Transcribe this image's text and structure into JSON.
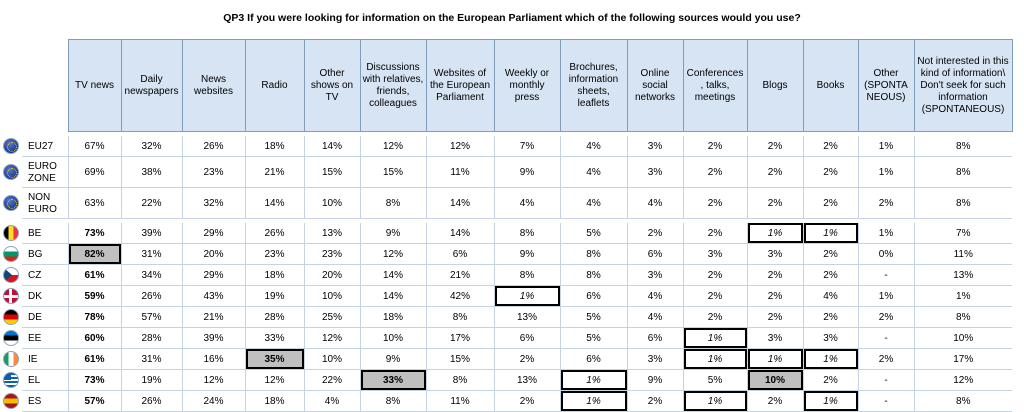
{
  "title": "QP3  If you were looking for information on the European Parliament which of the following sources would you use?",
  "columns": [
    "TV news",
    "Daily newspapers",
    "News websites",
    "Radio",
    "Other shows on TV",
    "Discussions with relatives, friends, colleagues",
    "Websites of the European Parliament",
    "Weekly or monthly press",
    "Brochures, information sheets, leaflets",
    "Online social networks",
    "Conferences , talks, meetings",
    "Blogs",
    "Books",
    "Other (SPONTA NEOUS)",
    "Not interested in this kind of information\\ Don't seek for such information (SPONTANEOUS)"
  ],
  "groups": [
    {
      "rows": [
        {
          "code": "EU27",
          "flag": "eu-flag-icon",
          "values": [
            "67%",
            "32%",
            "26%",
            "18%",
            "14%",
            "12%",
            "12%",
            "7%",
            "4%",
            "3%",
            "2%",
            "2%",
            "2%",
            "1%",
            "8%"
          ]
        },
        {
          "code": "EURO ZONE",
          "flag": "eu-flag-icon",
          "values": [
            "69%",
            "38%",
            "23%",
            "21%",
            "15%",
            "15%",
            "11%",
            "9%",
            "4%",
            "3%",
            "2%",
            "2%",
            "2%",
            "1%",
            "8%"
          ]
        },
        {
          "code": "NON EURO",
          "flag": "eu-flag-icon",
          "values": [
            "63%",
            "22%",
            "32%",
            "14%",
            "10%",
            "8%",
            "14%",
            "4%",
            "4%",
            "4%",
            "2%",
            "2%",
            "2%",
            "2%",
            "8%"
          ]
        }
      ]
    },
    {
      "rows": [
        {
          "code": "BE",
          "flag": "belgium-flag-icon",
          "values": [
            "73%",
            "39%",
            "29%",
            "26%",
            "13%",
            "9%",
            "14%",
            "8%",
            "5%",
            "2%",
            "2%",
            "1%",
            "1%",
            "1%",
            "7%"
          ],
          "bold": [
            0
          ],
          "low": [
            11,
            12
          ]
        },
        {
          "code": "BG",
          "flag": "bulgaria-flag-icon",
          "values": [
            "82%",
            "31%",
            "20%",
            "23%",
            "23%",
            "12%",
            "6%",
            "9%",
            "8%",
            "6%",
            "3%",
            "3%",
            "2%",
            "0%",
            "11%"
          ],
          "high": [
            0
          ]
        },
        {
          "code": "CZ",
          "flag": "czech-flag-icon",
          "values": [
            "61%",
            "34%",
            "29%",
            "18%",
            "20%",
            "14%",
            "21%",
            "8%",
            "8%",
            "3%",
            "2%",
            "2%",
            "2%",
            "-",
            "13%"
          ],
          "bold": [
            0
          ]
        },
        {
          "code": "DK",
          "flag": "denmark-flag-icon",
          "values": [
            "59%",
            "26%",
            "43%",
            "19%",
            "10%",
            "14%",
            "42%",
            "1%",
            "6%",
            "4%",
            "2%",
            "2%",
            "4%",
            "1%",
            "1%"
          ],
          "bold": [
            0
          ],
          "low": [
            7
          ]
        },
        {
          "code": "DE",
          "flag": "germany-flag-icon",
          "values": [
            "78%",
            "57%",
            "21%",
            "28%",
            "25%",
            "18%",
            "8%",
            "13%",
            "5%",
            "4%",
            "2%",
            "2%",
            "2%",
            "2%",
            "8%"
          ],
          "bold": [
            0
          ]
        },
        {
          "code": "EE",
          "flag": "estonia-flag-icon",
          "values": [
            "60%",
            "28%",
            "39%",
            "33%",
            "12%",
            "10%",
            "17%",
            "6%",
            "5%",
            "6%",
            "1%",
            "3%",
            "3%",
            "-",
            "10%"
          ],
          "bold": [
            0
          ],
          "low": [
            10
          ]
        },
        {
          "code": "IE",
          "flag": "ireland-flag-icon",
          "values": [
            "61%",
            "31%",
            "16%",
            "35%",
            "10%",
            "9%",
            "15%",
            "2%",
            "6%",
            "3%",
            "1%",
            "1%",
            "1%",
            "2%",
            "17%"
          ],
          "bold": [
            0
          ],
          "high": [
            3
          ],
          "low": [
            10,
            11,
            12
          ]
        },
        {
          "code": "EL",
          "flag": "greece-flag-icon",
          "values": [
            "73%",
            "19%",
            "12%",
            "12%",
            "22%",
            "33%",
            "8%",
            "13%",
            "1%",
            "9%",
            "5%",
            "10%",
            "2%",
            "-",
            "12%"
          ],
          "bold": [
            0
          ],
          "high": [
            5,
            11
          ],
          "low": [
            8
          ]
        },
        {
          "code": "ES",
          "flag": "spain-flag-icon",
          "values": [
            "57%",
            "26%",
            "24%",
            "18%",
            "4%",
            "8%",
            "11%",
            "2%",
            "1%",
            "2%",
            "1%",
            "2%",
            "1%",
            "-",
            "8%"
          ],
          "bold": [
            0
          ],
          "low": [
            8,
            10,
            12
          ]
        }
      ]
    }
  ],
  "flag_colors": {
    "belgium-flag-icon": [
      "#000000",
      "#fdda24",
      "#ef3340"
    ],
    "bulgaria-flag-icon": [
      "#ffffff",
      "#00966e",
      "#d62612"
    ],
    "germany-flag-icon": [
      "#000000",
      "#dd0000",
      "#ffce00"
    ],
    "estonia-flag-icon": [
      "#0072ce",
      "#000000",
      "#ffffff"
    ],
    "ireland-flag-icon": [
      "#169b62",
      "#ffffff",
      "#ff883e"
    ],
    "spain-flag-icon": [
      "#aa151b",
      "#f1bf00",
      "#aa151b"
    ]
  }
}
